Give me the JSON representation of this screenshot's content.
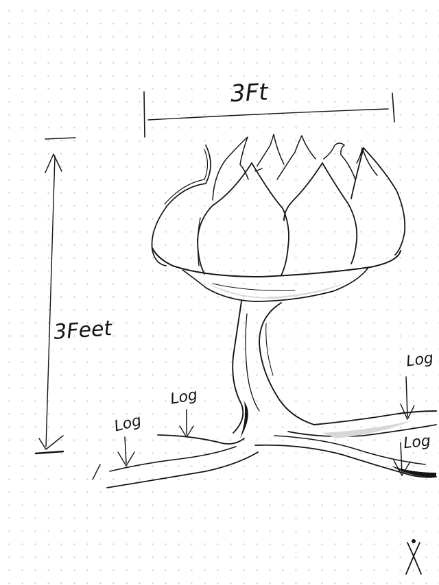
{
  "labels": {
    "width": "3Ft",
    "height": "3Feet",
    "log_left_1": "Log",
    "log_left_2": "Log",
    "log_right_1": "Log",
    "log_right_2": "Log"
  },
  "colors": {
    "ink": "#141414",
    "paper": "#ffffff",
    "dot_grid": "#c4c8cc",
    "shading": "#d7d7d7"
  },
  "icons": [
    "corner-figure-logo"
  ]
}
